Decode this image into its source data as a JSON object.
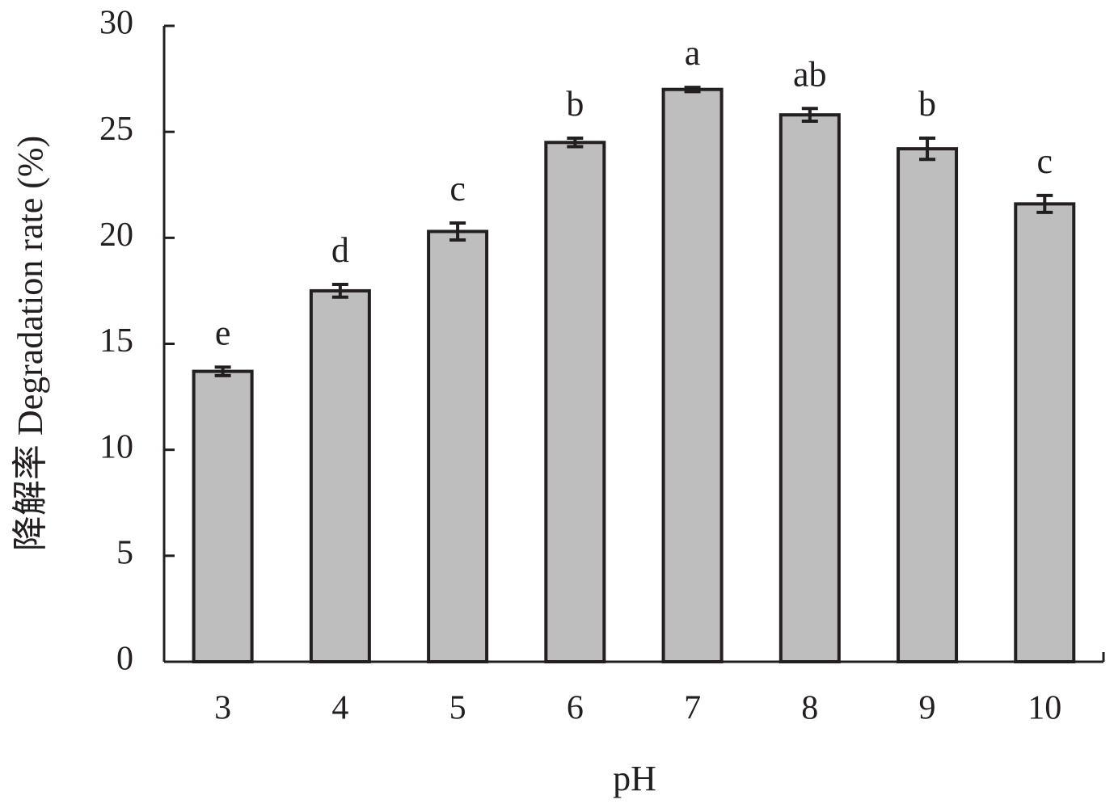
{
  "chart_data": {
    "type": "bar",
    "x_label": "pH",
    "y_label": "降解率 Degradation rate (%)",
    "categories": [
      "3",
      "4",
      "5",
      "6",
      "7",
      "8",
      "9",
      "10"
    ],
    "values": [
      13.7,
      17.5,
      20.3,
      24.5,
      27.0,
      25.8,
      24.2,
      21.6
    ],
    "errors": [
      0.2,
      0.3,
      0.4,
      0.2,
      0.1,
      0.3,
      0.5,
      0.4
    ],
    "annotations": [
      "e",
      "d",
      "c",
      "b",
      "a",
      "ab",
      "b",
      "c"
    ],
    "color": "#bebebe",
    "ylim": [
      0,
      30
    ],
    "yticks": [
      0,
      5,
      10,
      15,
      20,
      25,
      30
    ],
    "grid": false
  }
}
